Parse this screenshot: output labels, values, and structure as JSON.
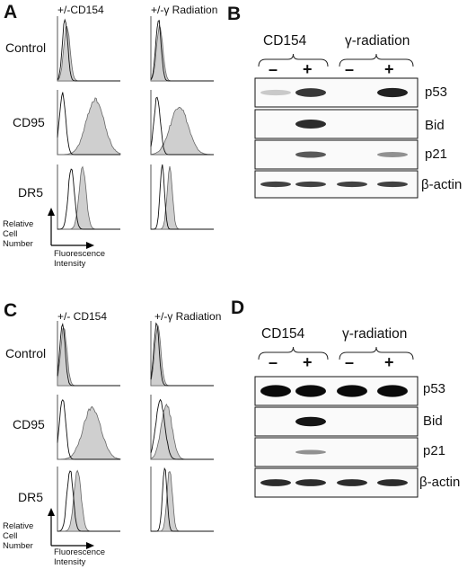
{
  "panels": {
    "A": {
      "letter": "A",
      "col_titles": [
        "+/-CD154",
        "+/-γ Radiation"
      ],
      "rows": [
        "Control",
        "CD95",
        "DR5"
      ],
      "axis": {
        "y": "Relative Cell Number",
        "x": "Fluorescence Intensity"
      }
    },
    "B": {
      "letter": "B",
      "groups": [
        "CD154",
        "γ-radiation"
      ],
      "lanes": [
        "–",
        "+",
        "–",
        "+"
      ],
      "proteins": [
        "p53",
        "Bid",
        "p21",
        "β-actin"
      ]
    },
    "C": {
      "letter": "C",
      "col_titles": [
        "+/- CD154",
        "+/-γ Radiation"
      ],
      "rows": [
        "Control",
        "CD95",
        "DR5"
      ],
      "axis": {
        "y": "Relative Cell Number",
        "x": "Fluorescence Intensity"
      }
    },
    "D": {
      "letter": "D",
      "groups": [
        "CD154",
        "γ-radiation"
      ],
      "lanes": [
        "–",
        "+",
        "–",
        "+"
      ],
      "proteins": [
        "p53",
        "Bid",
        "p21",
        "β-actin"
      ]
    }
  }
}
